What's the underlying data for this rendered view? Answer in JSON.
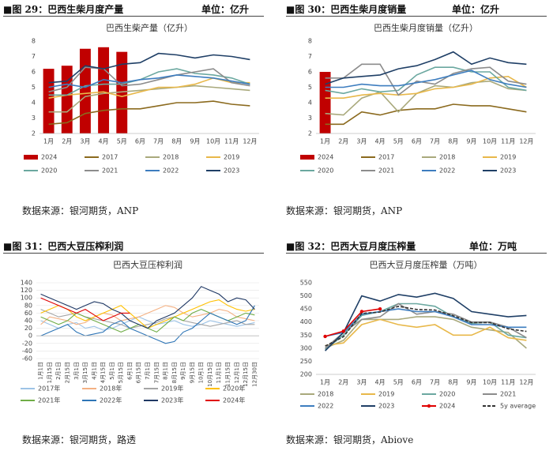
{
  "figures": [
    {
      "caption": "图 29：巴西生柴月度产量",
      "unit": "单位：亿升",
      "source": "数据来源：银河期货，ANP"
    },
    {
      "caption": "图 30：巴西生柴月度销量",
      "unit": "单位：亿升",
      "source": "数据来源：银河期货，ANP"
    },
    {
      "caption": "图 31：巴西大豆压榨利润",
      "source": "数据来源：银河期货，路透"
    },
    {
      "caption": "图 32：巴西大豆月度压榨量",
      "unit": "单位：万吨",
      "source": "数据来源：银河期货，Abiove"
    }
  ],
  "chart_data": [
    {
      "type": "combo",
      "title": "巴西生柴产量（亿升）",
      "categories": [
        "1月",
        "2月",
        "3月",
        "4月",
        "5月",
        "6月",
        "7月",
        "8月",
        "9月",
        "10月",
        "11月",
        "12月"
      ],
      "ylim": [
        2,
        8
      ],
      "yticks": [
        2,
        3,
        4,
        5,
        6,
        7,
        8
      ],
      "grid": false,
      "series": [
        {
          "name": "2024",
          "kind": "bar",
          "color": "#c00000",
          "values": [
            6.2,
            6.4,
            7.5,
            7.6,
            7.3,
            null,
            null,
            null,
            null,
            null,
            null,
            null
          ]
        },
        {
          "name": "2017",
          "color": "#8b6a1e",
          "values": [
            2.6,
            2.7,
            3.3,
            3.5,
            3.6,
            3.6,
            3.8,
            4.0,
            4.0,
            4.1,
            3.9,
            3.8
          ]
        },
        {
          "name": "2018",
          "color": "#a9a97c",
          "values": [
            3.4,
            3.4,
            4.4,
            4.6,
            4.7,
            4.8,
            4.9,
            5.0,
            5.1,
            5.0,
            4.9,
            4.8
          ]
        },
        {
          "name": "2019",
          "color": "#e8b84a",
          "values": [
            4.3,
            4.5,
            4.6,
            4.7,
            4.4,
            4.7,
            5.0,
            5.0,
            5.2,
            5.6,
            5.3,
            5.3
          ]
        },
        {
          "name": "2020",
          "color": "#6ba8a0",
          "values": [
            4.5,
            4.5,
            5.1,
            5.2,
            5.2,
            5.5,
            6.0,
            6.2,
            5.9,
            5.8,
            5.6,
            5.2
          ]
        },
        {
          "name": "2021",
          "color": "#8c8c8c",
          "values": [
            4.7,
            5.0,
            6.3,
            6.2,
            5.1,
            5.2,
            5.5,
            5.8,
            6.0,
            6.2,
            5.3,
            5.1
          ]
        },
        {
          "name": "2022",
          "color": "#3d7dbf",
          "values": [
            5.0,
            5.2,
            5.0,
            5.5,
            5.3,
            5.5,
            5.6,
            5.8,
            5.7,
            5.6,
            5.4,
            5.2
          ]
        },
        {
          "name": "2023",
          "color": "#1f3f66",
          "values": [
            5.3,
            5.4,
            6.4,
            6.2,
            6.5,
            6.6,
            7.2,
            7.1,
            6.9,
            7.1,
            7.0,
            6.8
          ]
        }
      ]
    },
    {
      "type": "combo",
      "title": "巴西生柴月度销量（亿升）",
      "categories": [
        "1月",
        "2月",
        "3月",
        "4月",
        "5月",
        "6月",
        "7月",
        "8月",
        "9月",
        "10月",
        "11月",
        "12月"
      ],
      "ylim": [
        2,
        8
      ],
      "yticks": [
        2,
        3,
        4,
        5,
        6,
        7,
        8
      ],
      "grid": false,
      "series": [
        {
          "name": "2024",
          "kind": "bar",
          "color": "#c00000",
          "values": [
            6.0,
            null,
            null,
            null,
            null,
            null,
            null,
            null,
            null,
            null,
            null,
            null
          ]
        },
        {
          "name": "2017",
          "color": "#8b6a1e",
          "values": [
            2.6,
            2.6,
            3.4,
            3.2,
            3.5,
            3.6,
            3.6,
            3.9,
            3.8,
            3.8,
            3.6,
            3.4
          ]
        },
        {
          "name": "2018",
          "color": "#a9a97c",
          "values": [
            3.3,
            3.2,
            4.3,
            4.7,
            3.4,
            4.6,
            5.1,
            5.0,
            5.3,
            5.4,
            4.9,
            4.8
          ]
        },
        {
          "name": "2019",
          "color": "#e8b84a",
          "values": [
            4.3,
            4.3,
            4.5,
            4.6,
            4.5,
            4.6,
            4.9,
            5.0,
            5.2,
            5.6,
            5.7,
            5.0
          ]
        },
        {
          "name": "2020",
          "color": "#6ba8a0",
          "values": [
            4.8,
            4.6,
            4.9,
            4.7,
            4.8,
            5.8,
            6.3,
            6.3,
            6.0,
            6.0,
            5.0,
            4.8
          ]
        },
        {
          "name": "2021",
          "color": "#8c8c8c",
          "values": [
            5.6,
            5.6,
            6.5,
            6.5,
            4.5,
            5.4,
            5.2,
            5.9,
            6.2,
            6.3,
            5.4,
            5.2
          ]
        },
        {
          "name": "2022",
          "color": "#3d7dbf",
          "values": [
            5.0,
            5.0,
            5.2,
            5.1,
            5.1,
            5.3,
            5.5,
            5.8,
            6.1,
            5.5,
            5.2,
            5.0
          ]
        },
        {
          "name": "2023",
          "color": "#1f3f66",
          "values": [
            5.2,
            5.6,
            5.7,
            5.8,
            6.2,
            6.4,
            6.8,
            7.3,
            6.5,
            6.9,
            6.6,
            6.5
          ]
        }
      ]
    },
    {
      "type": "line",
      "title": "巴西大豆压榨利润",
      "categories": [
        "1月1日",
        "1月15日",
        "2月1日",
        "2月15日",
        "3月1日",
        "3月15日",
        "4月1日",
        "4月15日",
        "5月1日",
        "5月15日",
        "6月1日",
        "6月15日",
        "7月1日",
        "7月15日",
        "8月1日",
        "8月15日",
        "9月1日",
        "9月15日",
        "10月1日",
        "10月15日",
        "11月1日",
        "11月15日",
        "12月1日",
        "12月15日",
        "12月30日"
      ],
      "ylim": [
        -60,
        140
      ],
      "yticks": [
        -60,
        -40,
        -20,
        0,
        20,
        40,
        60,
        80,
        100,
        120,
        140
      ],
      "grid": true,
      "series": [
        {
          "name": "2017年",
          "color": "#9dc3e6",
          "values": [
            40,
            30,
            20,
            30,
            35,
            20,
            25,
            15,
            20,
            30,
            40,
            50,
            40,
            30,
            35,
            40,
            30,
            25,
            30,
            40,
            35,
            30,
            25,
            30,
            35
          ]
        },
        {
          "name": "2018年",
          "color": "#f4b183",
          "values": [
            30,
            50,
            45,
            40,
            30,
            35,
            50,
            60,
            55,
            40,
            45,
            50,
            60,
            70,
            80,
            75,
            60,
            50,
            55,
            60,
            70,
            65,
            50,
            45,
            40
          ]
        },
        {
          "name": "2019年",
          "color": "#a5a5a5",
          "values": [
            70,
            60,
            50,
            55,
            60,
            50,
            45,
            40,
            35,
            30,
            20,
            25,
            30,
            35,
            45,
            50,
            40,
            35,
            30,
            25,
            30,
            35,
            40,
            30,
            30
          ]
        },
        {
          "name": "2020年",
          "color": "#ffc000",
          "values": [
            60,
            70,
            80,
            70,
            50,
            40,
            50,
            60,
            70,
            80,
            60,
            40,
            20,
            30,
            40,
            50,
            60,
            70,
            80,
            90,
            95,
            80,
            70,
            65,
            70
          ]
        },
        {
          "name": "2021年",
          "color": "#70ad47",
          "values": [
            50,
            40,
            30,
            40,
            60,
            50,
            40,
            30,
            20,
            10,
            20,
            30,
            20,
            10,
            30,
            50,
            40,
            60,
            70,
            60,
            50,
            40,
            50,
            60,
            55
          ]
        },
        {
          "name": "2022年",
          "color": "#2e75b6",
          "values": [
            0,
            10,
            20,
            30,
            10,
            0,
            5,
            10,
            30,
            40,
            20,
            10,
            0,
            -10,
            -20,
            -15,
            10,
            20,
            40,
            60,
            50,
            40,
            30,
            40,
            80
          ]
        },
        {
          "name": "2023年",
          "color": "#1f3864",
          "values": [
            110,
            100,
            90,
            80,
            70,
            80,
            90,
            85,
            70,
            60,
            40,
            30,
            20,
            40,
            50,
            60,
            80,
            100,
            130,
            120,
            110,
            90,
            100,
            95,
            70
          ]
        },
        {
          "name": "2024年",
          "color": "#e00000",
          "values": [
            100,
            90,
            80,
            70,
            60,
            70,
            55,
            40,
            50,
            60,
            60,
            null,
            null,
            null,
            null,
            null,
            null,
            null,
            null,
            null,
            null,
            null,
            null,
            null,
            null
          ]
        }
      ]
    },
    {
      "type": "line",
      "title": "巴西大豆月度压榨量（万吨）",
      "categories": [
        "1月",
        "2月",
        "3月",
        "4月",
        "5月",
        "6月",
        "7月",
        "8月",
        "9月",
        "10月",
        "11月",
        "12月"
      ],
      "ylim": [
        200,
        550
      ],
      "yticks": [
        200,
        250,
        300,
        350,
        400,
        450,
        500,
        550
      ],
      "grid": false,
      "series": [
        {
          "name": "2018",
          "color": "#a9a97c",
          "values": [
            300,
            330,
            410,
            410,
            410,
            420,
            420,
            410,
            380,
            370,
            360,
            300
          ]
        },
        {
          "name": "2019",
          "color": "#e8b84a",
          "values": [
            310,
            320,
            390,
            410,
            390,
            380,
            390,
            350,
            350,
            380,
            340,
            330
          ]
        },
        {
          "name": "2020",
          "color": "#6ba8a0",
          "values": [
            295,
            350,
            425,
            440,
            470,
            470,
            460,
            420,
            395,
            400,
            350,
            340
          ]
        },
        {
          "name": "2021",
          "color": "#8c8c8c",
          "values": [
            300,
            360,
            410,
            420,
            470,
            430,
            440,
            430,
            400,
            400,
            380,
            340
          ]
        },
        {
          "name": "2022",
          "color": "#3d7dbf",
          "values": [
            345,
            360,
            430,
            440,
            450,
            440,
            440,
            420,
            390,
            390,
            380,
            380
          ]
        },
        {
          "name": "2023",
          "color": "#1f3f66",
          "values": [
            290,
            360,
            500,
            480,
            505,
            495,
            510,
            490,
            440,
            430,
            420,
            425
          ]
        },
        {
          "name": "2024",
          "color": "#e00000",
          "marker": true,
          "values": [
            345,
            365,
            440,
            450,
            null,
            null,
            null,
            null,
            null,
            null,
            null,
            null
          ]
        },
        {
          "name": "5y average",
          "color": "#333333",
          "dash": true,
          "values": [
            308,
            344,
            433,
            438,
            460,
            448,
            446,
            424,
            398,
            398,
            374,
            364
          ]
        }
      ]
    }
  ]
}
